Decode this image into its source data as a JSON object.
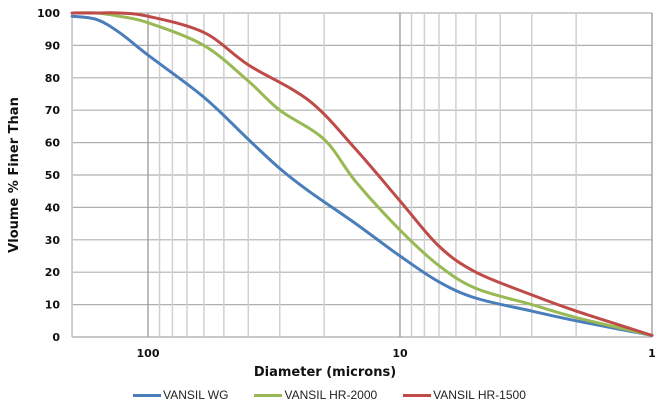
{
  "chart_data": {
    "type": "line",
    "title": "",
    "xlabel": "Diameter (microns)",
    "ylabel": "Vloume % Finer Than",
    "x_scale": "log",
    "x_reversed": true,
    "xlim": [
      200,
      1
    ],
    "ylim": [
      0,
      100
    ],
    "xticks": [
      100,
      10,
      1
    ],
    "xtick_labels": [
      "100",
      "10",
      "1"
    ],
    "yticks": [
      0,
      10,
      20,
      30,
      40,
      50,
      60,
      70,
      80,
      90,
      100
    ],
    "ytick_labels": [
      "0",
      "10",
      "20",
      "30",
      "40",
      "50",
      "60",
      "70",
      "80",
      "90",
      "100"
    ],
    "grid": true,
    "legend_position": "bottom",
    "series": [
      {
        "name": "VANSIL WG",
        "color": "#4a7ebb",
        "x": [
          200,
          160,
          130,
          100,
          60,
          40,
          30,
          23,
          15,
          10,
          7,
          5,
          3,
          2,
          1
        ],
        "y": [
          99,
          98,
          94,
          87,
          74,
          61,
          52,
          45,
          35,
          25,
          17,
          12,
          8,
          5,
          0.5
        ]
      },
      {
        "name": "VANSIL HR-2000",
        "color": "#98b954",
        "x": [
          200,
          160,
          130,
          100,
          60,
          40,
          30,
          20,
          15,
          10,
          7,
          5,
          3,
          2,
          1
        ],
        "y": [
          100,
          100,
          99,
          97,
          90,
          79,
          70,
          61,
          48,
          33,
          22,
          15,
          10,
          6,
          0.5
        ]
      },
      {
        "name": "VANSIL HR-1500",
        "color": "#be4b48",
        "x": [
          200,
          160,
          130,
          100,
          60,
          40,
          23,
          15,
          10,
          7,
          5,
          3,
          2,
          1
        ],
        "y": [
          100,
          100,
          100,
          99,
          94,
          84,
          73,
          58,
          42,
          28,
          20,
          13,
          8,
          0.5
        ]
      }
    ]
  },
  "legend": {
    "items": [
      {
        "label": "VANSIL WG",
        "color": "#4a7ebb"
      },
      {
        "label": "VANSIL HR-2000",
        "color": "#98b954"
      },
      {
        "label": "VANSIL HR-1500",
        "color": "#be4b48"
      }
    ]
  }
}
